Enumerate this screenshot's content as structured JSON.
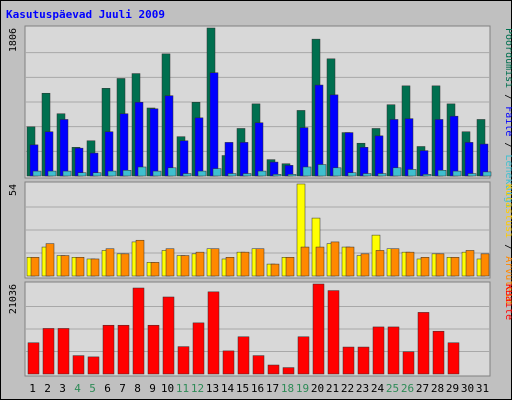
{
  "title": "Kasutuspäevad Juuli 2009",
  "colors": {
    "background": "#c0c0c0",
    "plot_background": "#d8d8d8",
    "title": "#0000ff",
    "pages": "#006f4f",
    "files": "#0000ff",
    "hits": "#3fbfcf",
    "visits": "#ff8800",
    "visitors": "#ffff00",
    "bytes": "#ff0000",
    "weekend_label": "#2e8b57",
    "weekday_label": "#000000"
  },
  "right_legend": {
    "panel1": [
      {
        "text": "Pöördumisi",
        "color": "#006f4f"
      },
      {
        "text": " / ",
        "color": "#000000"
      },
      {
        "text": "Faile",
        "color": "#0000ff"
      },
      {
        "text": " / ",
        "color": "#000000"
      },
      {
        "text": "Lehekülgi",
        "color": "#3fbfcf"
      }
    ],
    "panel2": [
      {
        "text": "Külastusi",
        "color": "#ffcc00"
      },
      {
        "text": " / ",
        "color": "#000000"
      },
      {
        "text": "Arvuteid",
        "color": "#ff8800"
      }
    ],
    "panel3": [
      {
        "text": "KBaite",
        "color": "#ff0000"
      }
    ]
  },
  "chart_data": [
    {
      "type": "bar",
      "panel": "hits-files-pages",
      "ylabel_max": "1806",
      "ylim": [
        0,
        1806
      ],
      "categories": [
        "1",
        "2",
        "3",
        "4",
        "5",
        "6",
        "7",
        "8",
        "9",
        "10",
        "11",
        "12",
        "13",
        "14",
        "15",
        "16",
        "17",
        "18",
        "19",
        "20",
        "21",
        "22",
        "23",
        "24",
        "25",
        "26",
        "27",
        "28",
        "29",
        "30",
        "31"
      ],
      "weekend_days": [
        "4",
        "5",
        "11",
        "12",
        "18",
        "19",
        "25",
        "26"
      ],
      "series": [
        {
          "name": "Pöördumisi",
          "values": [
            600,
            1010,
            760,
            350,
            430,
            1070,
            1190,
            1250,
            830,
            1490,
            480,
            900,
            1806,
            250,
            580,
            880,
            200,
            150,
            800,
            1670,
            1430,
            530,
            400,
            580,
            870,
            1100,
            360,
            1100,
            880,
            540,
            690
          ]
        },
        {
          "name": "Faile",
          "values": [
            380,
            540,
            690,
            340,
            280,
            540,
            760,
            900,
            820,
            980,
            430,
            710,
            1260,
            410,
            410,
            650,
            170,
            130,
            590,
            1110,
            990,
            530,
            350,
            490,
            690,
            700,
            310,
            690,
            730,
            410,
            390
          ]
        },
        {
          "name": "Lehekülgi",
          "values": [
            60,
            60,
            60,
            40,
            40,
            60,
            70,
            110,
            60,
            100,
            30,
            60,
            90,
            30,
            30,
            60,
            20,
            20,
            110,
            140,
            100,
            40,
            30,
            30,
            100,
            80,
            20,
            70,
            60,
            30,
            50
          ]
        }
      ]
    },
    {
      "type": "bar",
      "panel": "visits-visitors",
      "ylabel_max": "54",
      "ylim": [
        0,
        54
      ],
      "categories": [
        "1",
        "2",
        "3",
        "4",
        "5",
        "6",
        "7",
        "8",
        "9",
        "10",
        "11",
        "12",
        "13",
        "14",
        "15",
        "16",
        "17",
        "18",
        "19",
        "20",
        "21",
        "22",
        "23",
        "24",
        "25",
        "26",
        "27",
        "28",
        "29",
        "30",
        "31"
      ],
      "series": [
        {
          "name": "Külastusi",
          "values": [
            11,
            17,
            12,
            11,
            10,
            15,
            13,
            20,
            8,
            15,
            12,
            13,
            16,
            10,
            14,
            16,
            7,
            11,
            54,
            34,
            19,
            17,
            12,
            24,
            16,
            14,
            10,
            13,
            11,
            14,
            10
          ]
        },
        {
          "name": "Arvuteid",
          "values": [
            11,
            19,
            12,
            11,
            10,
            16,
            13,
            21,
            8,
            16,
            12,
            14,
            16,
            11,
            14,
            16,
            7,
            11,
            17,
            17,
            20,
            17,
            13,
            15,
            16,
            14,
            11,
            13,
            11,
            15,
            13
          ]
        }
      ]
    },
    {
      "type": "bar",
      "panel": "kbytes",
      "ylabel_max": "21036",
      "ylim": [
        0,
        21036
      ],
      "categories": [
        "1",
        "2",
        "3",
        "4",
        "5",
        "6",
        "7",
        "8",
        "9",
        "10",
        "11",
        "12",
        "13",
        "14",
        "15",
        "16",
        "17",
        "18",
        "19",
        "20",
        "21",
        "22",
        "23",
        "24",
        "25",
        "26",
        "27",
        "28",
        "29",
        "30",
        "31"
      ],
      "series": [
        {
          "name": "KBaite",
          "values": [
            7300,
            10650,
            10650,
            4300,
            4000,
            11400,
            11400,
            20100,
            11400,
            18000,
            6400,
            11950,
            19200,
            5400,
            8700,
            4300,
            2100,
            1500,
            8700,
            21036,
            19500,
            6300,
            6300,
            11000,
            11000,
            5200,
            14400,
            10000,
            7300,
            0,
            0
          ]
        }
      ]
    }
  ]
}
